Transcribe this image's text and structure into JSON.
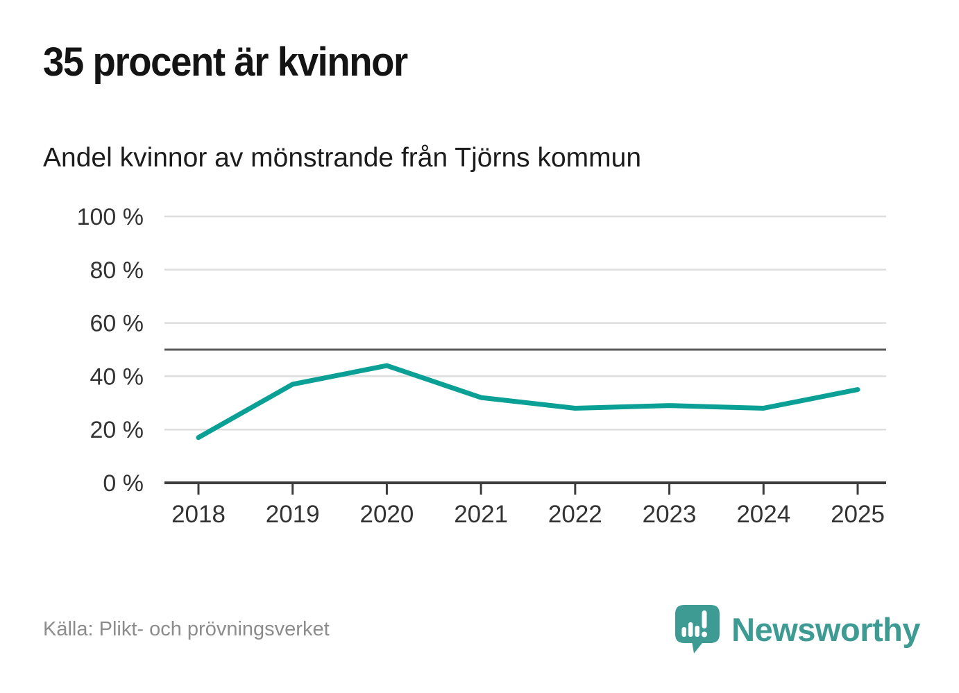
{
  "header": {
    "title": "35 procent är kvinnor",
    "subtitle": "Andel kvinnor av mönstrande från Tjörns kommun"
  },
  "chart_data": {
    "type": "line",
    "title": "35 procent är kvinnor",
    "subtitle": "Andel kvinnor av mönstrande från Tjörns kommun",
    "x": [
      2018,
      2019,
      2020,
      2021,
      2022,
      2023,
      2024,
      2025
    ],
    "x_labels": [
      "2018",
      "2019",
      "2020",
      "2021",
      "2022",
      "2023",
      "2024",
      "2025"
    ],
    "series": [
      {
        "name": "Andel kvinnor av mönstrande",
        "values": [
          17,
          37,
          44,
          32,
          28,
          29,
          28,
          35
        ]
      }
    ],
    "ylim": [
      0,
      100
    ],
    "yticks": [
      0,
      20,
      40,
      60,
      80,
      100
    ],
    "ytick_labels": [
      "0 %",
      "20 %",
      "40 %",
      "60 %",
      "80 %",
      "100 %"
    ],
    "reference_line": 50,
    "grid": "horizontal",
    "legend": "none",
    "colors": {
      "line": "#0aa096",
      "grid": "#dddddd",
      "reference_line": "#5a5a5a",
      "axis": "#3c3c3c",
      "tick_text": "#333333"
    }
  },
  "footer": {
    "source": "Källa: Plikt- och prövningsverket",
    "logo_text": "Newsworthy",
    "logo_color": "#3d9b94"
  }
}
